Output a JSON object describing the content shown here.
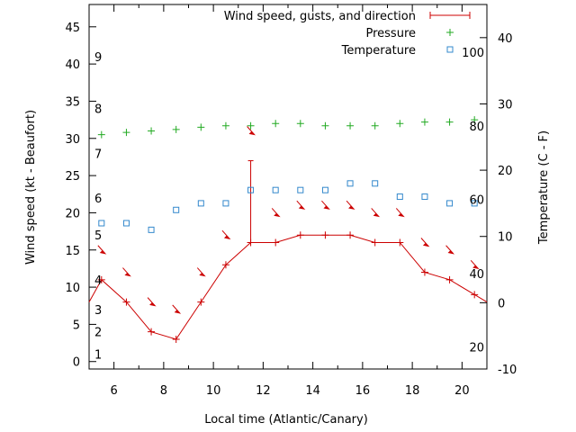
{
  "chart_data": {
    "type": "line",
    "xlabel": "Local time (Atlantic/Canary)",
    "ylabel_left": "Wind speed (kt - Beaufort)",
    "ylabel_right": "Temperature (C - F)",
    "xlim": [
      5,
      21
    ],
    "ylim_left": [
      -1,
      48
    ],
    "ylim_right": [
      -10,
      45
    ],
    "x_ticks": [
      6,
      8,
      10,
      12,
      14,
      16,
      18,
      20
    ],
    "y_left_ticks": [
      0,
      5,
      10,
      15,
      20,
      25,
      30,
      35,
      40,
      45
    ],
    "y_right_ticks": [
      -10,
      0,
      10,
      20,
      30,
      40
    ],
    "beaufort_labels": [
      {
        "label": "1",
        "y": 1
      },
      {
        "label": "2",
        "y": 4
      },
      {
        "label": "3",
        "y": 7
      },
      {
        "label": "4",
        "y": 11
      },
      {
        "label": "5",
        "y": 17
      },
      {
        "label": "6",
        "y": 22
      },
      {
        "label": "7",
        "y": 28
      },
      {
        "label": "8",
        "y": 34
      },
      {
        "label": "9",
        "y": 41
      }
    ],
    "fahrenheit_labels": [
      {
        "label": "20",
        "c": -6.7
      },
      {
        "label": "40",
        "c": 4.4
      },
      {
        "label": "60",
        "c": 15.6
      },
      {
        "label": "80",
        "c": 26.7
      },
      {
        "label": "100",
        "c": 37.8
      }
    ],
    "legend": {
      "position": "top-right",
      "entries": [
        "Wind speed, gusts, and direction",
        "Pressure",
        "Temperature"
      ]
    },
    "colors": {
      "wind": "#cc0000",
      "pressure": "#22aa22",
      "temperature": "#3388cc"
    },
    "series": [
      {
        "name": "Wind speed, gusts, and direction",
        "x": [
          5,
          5.5,
          6.5,
          7.5,
          8.5,
          9.5,
          10.5,
          11.5,
          12.5,
          13.5,
          14.5,
          15.5,
          16.5,
          17.5,
          18.5,
          19.5,
          20.5,
          21
        ],
        "values": [
          8,
          11,
          8,
          4,
          3,
          8,
          13,
          16,
          16,
          17,
          17,
          17,
          16,
          16,
          12,
          11,
          9,
          8
        ]
      },
      {
        "name": "Pressure",
        "x": [
          5.5,
          6.5,
          7.5,
          8.5,
          9.5,
          10.5,
          11.5,
          12.5,
          13.5,
          14.5,
          15.5,
          16.5,
          17.5,
          18.5,
          19.5,
          20.5
        ],
        "values": [
          30.5,
          30.8,
          31,
          31.2,
          31.5,
          31.7,
          31.7,
          32,
          32,
          31.7,
          31.7,
          31.7,
          32,
          32.2,
          32.2,
          32.5
        ]
      },
      {
        "name": "Temperature",
        "x": [
          5.5,
          6.5,
          7.5,
          8.5,
          9.5,
          10.5,
          11.5,
          12.5,
          13.5,
          14.5,
          15.5,
          16.5,
          17.5,
          18.5,
          19.5,
          20.5
        ],
        "values": [
          12,
          12,
          11,
          14,
          15,
          15,
          17,
          17,
          17,
          17,
          18,
          18,
          16,
          16,
          15,
          15
        ]
      }
    ],
    "gusts": [
      {
        "x": 11.5,
        "value": 27
      }
    ],
    "wind_direction": {
      "x": [
        5.5,
        6.5,
        7.5,
        8.5,
        9.5,
        10.5,
        11.5,
        12.5,
        13.5,
        14.5,
        15.5,
        16.5,
        17.5,
        18.5,
        19.5,
        20.5
      ],
      "y": [
        15,
        12,
        8,
        7,
        12,
        17,
        31,
        20,
        21,
        21,
        21,
        20,
        20,
        16,
        15,
        13
      ]
    }
  }
}
